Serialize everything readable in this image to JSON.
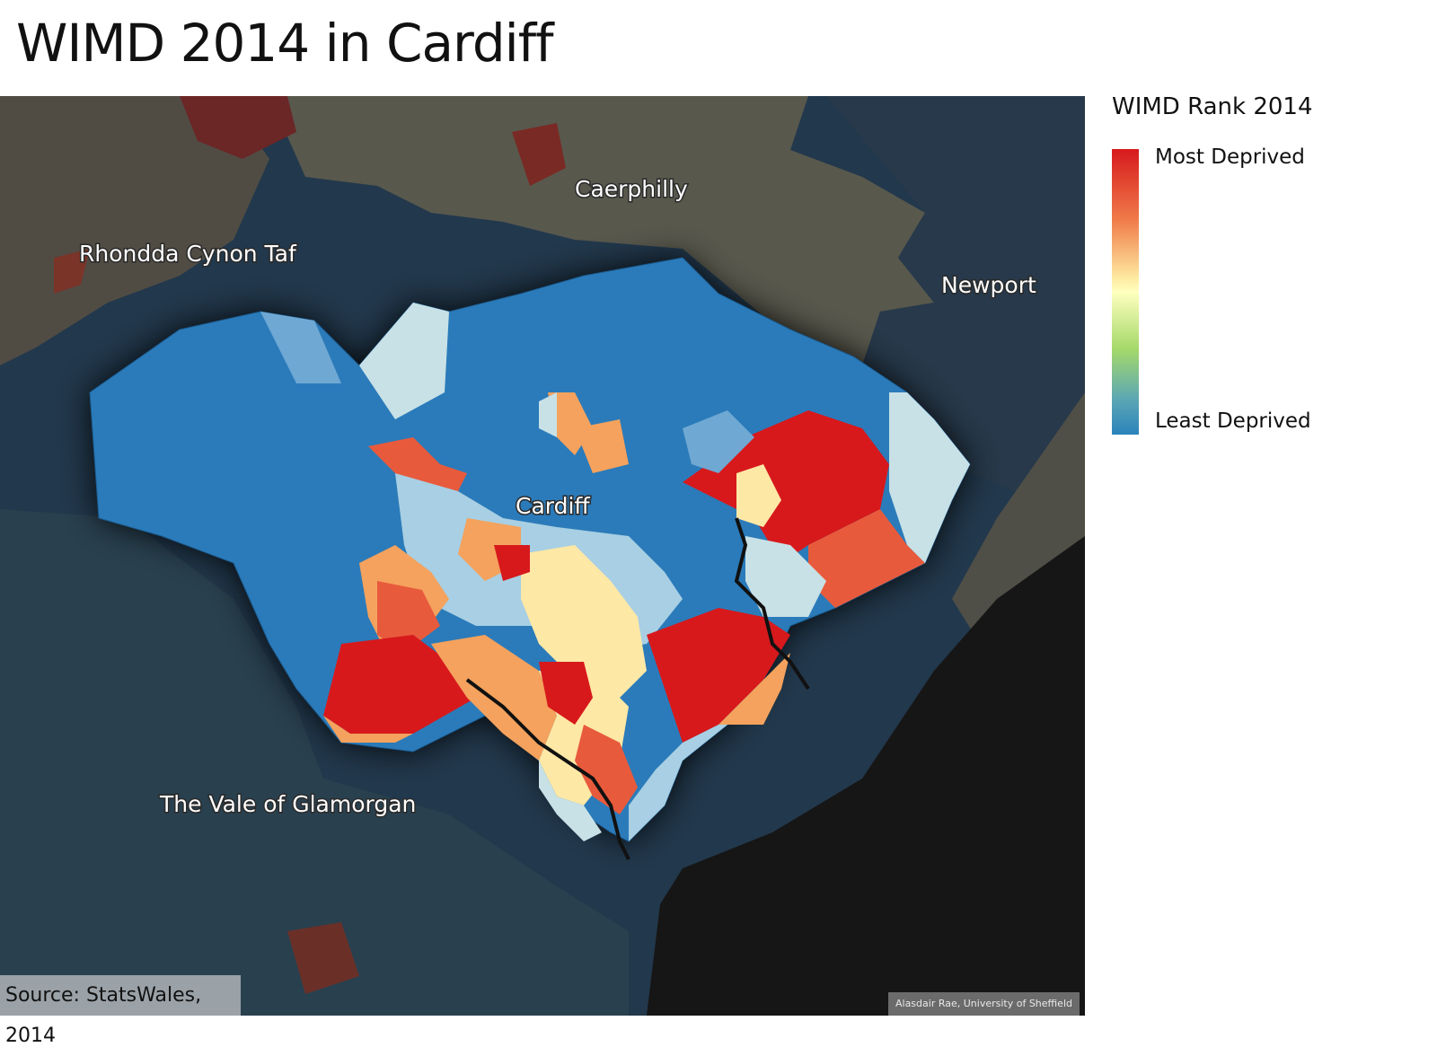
{
  "title": "WIMD 2014 in Cardiff",
  "map": {
    "labels": {
      "rhondda": "Rhondda Cynon Taf",
      "caerphilly": "Caerphilly",
      "newport": "Newport",
      "cardiff": "Cardiff",
      "vale": "The Vale of Glamorgan"
    },
    "colors": {
      "background": "#1f3346",
      "sea": "#161616",
      "neighbour_brown": "#5a5a4e",
      "least_deprived": "#2b7bba",
      "most_deprived": "#d7191c"
    }
  },
  "legend": {
    "title": "WIMD Rank 2014",
    "high_label": "Most Deprived",
    "low_label": "Least Deprived"
  },
  "source": "Source: StatsWales, 2014",
  "credit": "Alasdair Rae, University of Sheffield"
}
